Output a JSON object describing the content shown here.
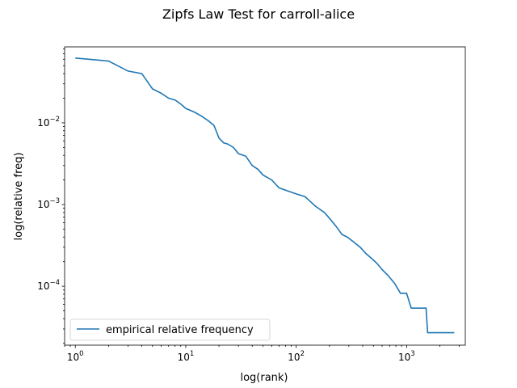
{
  "chart_data": {
    "type": "line",
    "title": "Zipfs Law Test for carroll-alice",
    "xlabel": "log(rank)",
    "ylabel": "log(relative freq)",
    "xscale": "log",
    "yscale": "log",
    "xlim": [
      0.8,
      3400
    ],
    "ylim": [
      1.9e-05,
      0.085
    ],
    "grid": false,
    "legend_position": "lower-left",
    "x_ticks": [
      {
        "base": "10",
        "exp": "0",
        "value": 1
      },
      {
        "base": "10",
        "exp": "1",
        "value": 10
      },
      {
        "base": "10",
        "exp": "2",
        "value": 100
      },
      {
        "base": "10",
        "exp": "3",
        "value": 1000
      }
    ],
    "y_ticks": [
      {
        "base": "10",
        "exp": "−4",
        "value": 0.0001
      },
      {
        "base": "10",
        "exp": "−3",
        "value": 0.001
      },
      {
        "base": "10",
        "exp": "−2",
        "value": 0.01
      }
    ],
    "series": [
      {
        "name": "empirical relative frequency",
        "color": "#1f77b4",
        "x": [
          1,
          2,
          3,
          4,
          5,
          6,
          7,
          8,
          9,
          10,
          12,
          14,
          16,
          18,
          20,
          22,
          24,
          27,
          30,
          35,
          40,
          45,
          50,
          60,
          70,
          80,
          100,
          120,
          150,
          180,
          200,
          230,
          260,
          290,
          330,
          380,
          430,
          480,
          540,
          600,
          680,
          780,
          880,
          1000,
          1100,
          1500,
          1550,
          2700
        ],
        "y": [
          0.062,
          0.057,
          0.043,
          0.04,
          0.026,
          0.023,
          0.02,
          0.019,
          0.017,
          0.015,
          0.0135,
          0.012,
          0.0106,
          0.0093,
          0.0065,
          0.0057,
          0.0055,
          0.005,
          0.0042,
          0.0039,
          0.003,
          0.0027,
          0.0023,
          0.002,
          0.0016,
          0.0015,
          0.00135,
          0.00125,
          0.00095,
          0.0008,
          0.00068,
          0.00054,
          0.00043,
          0.0004,
          0.00035,
          0.0003,
          0.00025,
          0.00022,
          0.00019,
          0.00016,
          0.000135,
          0.000108,
          8.2e-05,
          8.2e-05,
          5.4e-05,
          5.4e-05,
          2.7e-05,
          2.7e-05
        ]
      }
    ]
  }
}
